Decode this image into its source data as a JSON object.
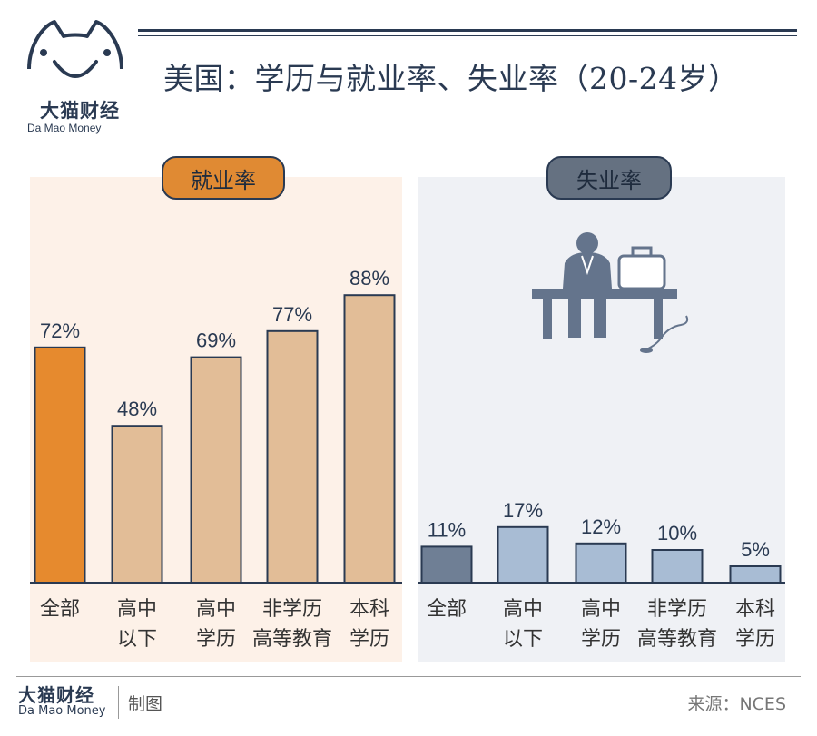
{
  "brand": {
    "name_cn": "大猫财经",
    "name_en": "Da Mao Money"
  },
  "title": "美国：学历与就业率、失业率（20-24岁）",
  "chart_data": [
    {
      "type": "bar",
      "title": "就业率",
      "categories": [
        "全部",
        "高中以下",
        "高中学历",
        "非学历高等教育",
        "本科学历"
      ],
      "category_lines": [
        [
          "全部"
        ],
        [
          "高中",
          "以下"
        ],
        [
          "高中",
          "学历"
        ],
        [
          "非学历",
          "高等教育"
        ],
        [
          "本科",
          "学历"
        ]
      ],
      "values": [
        72,
        48,
        69,
        77,
        88
      ],
      "labels": [
        "72%",
        "48%",
        "69%",
        "77%",
        "88%"
      ],
      "unit": "%",
      "ylim": [
        0,
        100
      ],
      "highlight_index": 0,
      "colors": {
        "highlight": "#e68a2e",
        "normal": "#e2bd97"
      }
    },
    {
      "type": "bar",
      "title": "失业率",
      "categories": [
        "全部",
        "高中以下",
        "高中学历",
        "非学历高等教育",
        "本科学历"
      ],
      "category_lines": [
        [
          "全部"
        ],
        [
          "高中",
          "以下"
        ],
        [
          "高中",
          "学历"
        ],
        [
          "非学历",
          "高等教育"
        ],
        [
          "本科",
          "学历"
        ]
      ],
      "values": [
        11,
        17,
        12,
        10,
        5
      ],
      "labels": [
        "11%",
        "17%",
        "12%",
        "10%",
        "5%"
      ],
      "unit": "%",
      "ylim": [
        0,
        100
      ],
      "highlight_index": 0,
      "colors": {
        "highlight": "#6f7f95",
        "normal": "#a8bcd4"
      }
    }
  ],
  "footer": {
    "made_by": "制图",
    "source": "来源：NCES"
  },
  "colors": {
    "brand_navy": "#2a3a52",
    "employment_accent": "#e08a33",
    "unemployment_accent": "#657181"
  },
  "icons": [
    "cat-logo-icon",
    "unemployed-man-bench-icon"
  ]
}
